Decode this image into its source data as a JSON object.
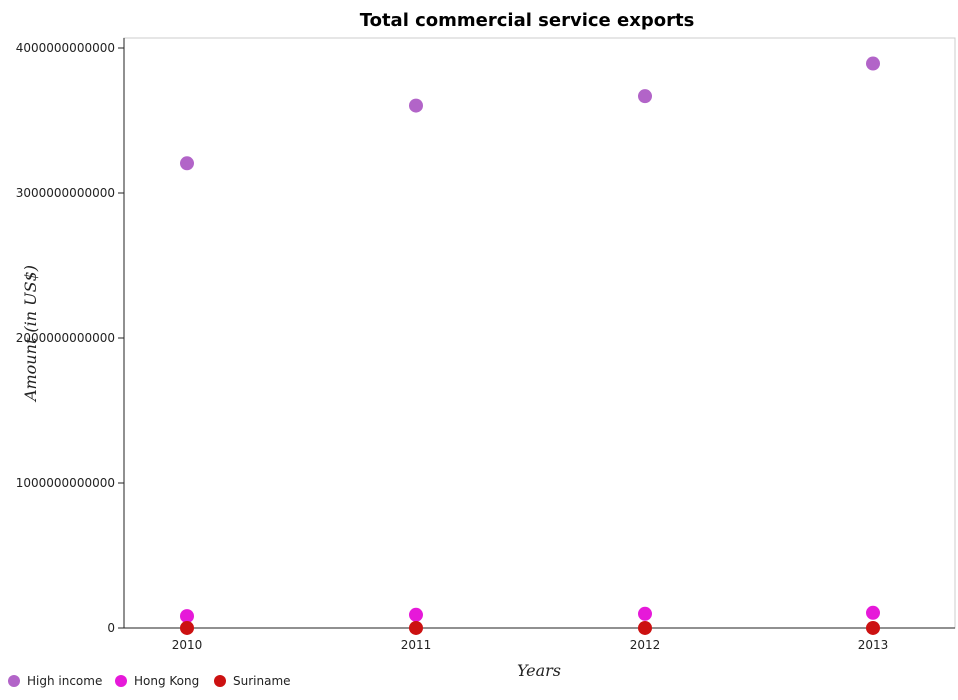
{
  "chart_data": {
    "type": "scatter",
    "title": "Total commercial service exports",
    "xlabel": "Years",
    "ylabel": "Amount (in US$)",
    "categories": [
      "2010",
      "2011",
      "2012",
      "2013"
    ],
    "ylim": [
      0,
      4000000000000
    ],
    "yticks": [
      0,
      1000000000000,
      2000000000000,
      3000000000000,
      4000000000000
    ],
    "ytick_labels": [
      "0",
      "1000000000000",
      "2000000000000",
      "3000000000000",
      "4000000000000"
    ],
    "grid": false,
    "legend_position": "bottom-left",
    "series": [
      {
        "name": "High income",
        "color": "#b264c8",
        "values": [
          3205000000000,
          3603000000000,
          3668000000000,
          3893000000000
        ]
      },
      {
        "name": "Hong Kong",
        "color": "#e619d9",
        "values": [
          82000000000,
          91000000000,
          98000000000,
          105000000000
        ]
      },
      {
        "name": "Suriname",
        "color": "#cc1111",
        "values": [
          230000000,
          240000000,
          220000000,
          230000000
        ]
      }
    ]
  }
}
